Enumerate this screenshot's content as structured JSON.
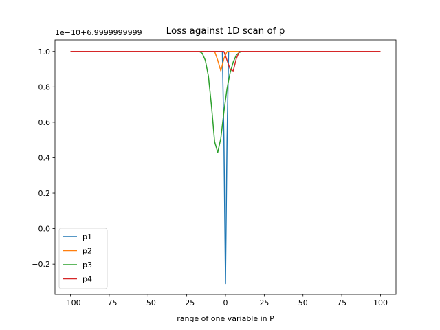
{
  "chart_data": {
    "type": "line",
    "title": "Loss against 1D scan of p",
    "xlabel": "range of one variable in P",
    "ylabel": "",
    "offset_text": "1e−10+6.9999999999",
    "xlim": [
      -110,
      110
    ],
    "ylim": [
      -0.37,
      1.065
    ],
    "xticks": [
      -100,
      -75,
      -50,
      -25,
      0,
      25,
      50,
      75,
      100
    ],
    "xtick_labels": [
      "−100",
      "−75",
      "−50",
      "−25",
      "0",
      "25",
      "50",
      "75",
      "100"
    ],
    "yticks": [
      -0.2,
      0.0,
      0.2,
      0.4,
      0.6,
      0.8,
      1.0
    ],
    "ytick_labels": [
      "−0.2",
      "0.0",
      "0.2",
      "0.4",
      "0.6",
      "0.8",
      "1.0"
    ],
    "grid": false,
    "legend_position": "lower-left",
    "series": [
      {
        "name": "p1",
        "color": "#1f77b4",
        "x": [
          -100,
          -2,
          -1,
          0,
          1,
          2,
          100
        ],
        "y": [
          1.0,
          1.0,
          0.5,
          -0.31,
          0.5,
          1.0,
          1.0
        ]
      },
      {
        "name": "p2",
        "color": "#ff7f0e",
        "x": [
          -100,
          -7,
          -5,
          -3,
          -1,
          1,
          3,
          5,
          100
        ],
        "y": [
          1.0,
          1.0,
          0.95,
          0.89,
          0.96,
          1.0,
          1.0,
          1.0,
          1.0
        ]
      },
      {
        "name": "p3",
        "color": "#2ca02c",
        "x": [
          -100,
          -17,
          -15,
          -13,
          -11,
          -9,
          -7,
          -5,
          -3,
          -1,
          1,
          3,
          5,
          7,
          9,
          11,
          13,
          100
        ],
        "y": [
          1.0,
          1.0,
          0.99,
          0.95,
          0.86,
          0.69,
          0.49,
          0.43,
          0.51,
          0.66,
          0.79,
          0.88,
          0.94,
          0.98,
          0.995,
          1.0,
          1.0,
          1.0
        ]
      },
      {
        "name": "p4",
        "color": "#d62728",
        "x": [
          -100,
          -1,
          1,
          3,
          5,
          7,
          9,
          100
        ],
        "y": [
          1.0,
          1.0,
          0.95,
          0.9,
          0.89,
          0.96,
          1.0,
          1.0
        ]
      }
    ]
  }
}
